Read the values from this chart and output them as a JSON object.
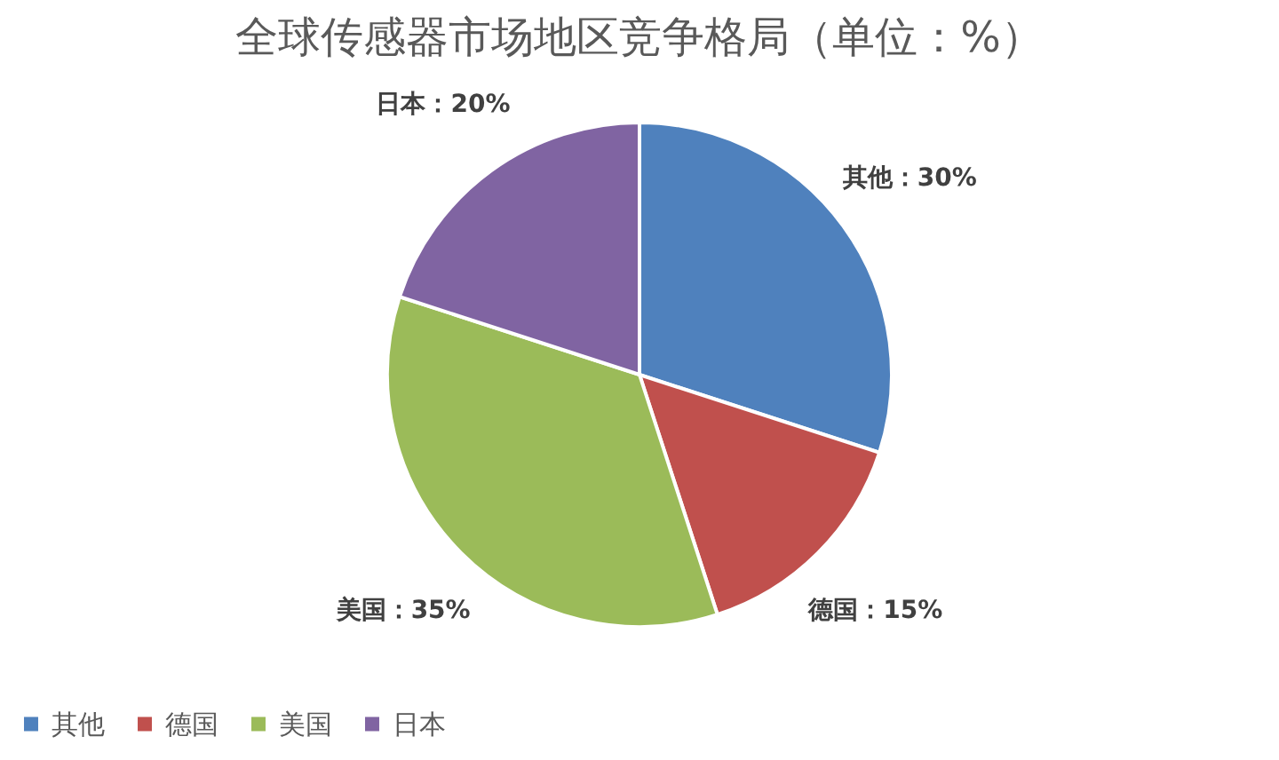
{
  "chart_data": {
    "type": "pie",
    "title": "全球传感器市场地区竞争格局（单位：%）",
    "categories": [
      "其他",
      "德国",
      "美国",
      "日本"
    ],
    "values": [
      30,
      15,
      35,
      20
    ],
    "colors": [
      "#4f81bd",
      "#c0504d",
      "#9bbb59",
      "#8064a2"
    ],
    "value_labels": [
      "其他：30%",
      "德国：15%",
      "美国：35%",
      "日本：20%"
    ],
    "legend": "bottom"
  }
}
